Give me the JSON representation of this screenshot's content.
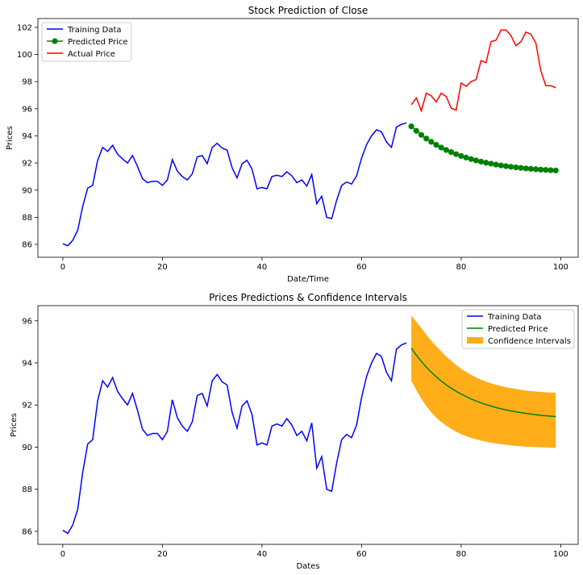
{
  "chart_data": [
    {
      "type": "line",
      "title": "Stock Prediction of Close",
      "xlabel": "Date/Time",
      "ylabel": "Prices",
      "xlim": [
        -5,
        103.5
      ],
      "ylim": [
        85.05,
        102.65
      ],
      "xticks": [
        0,
        20,
        40,
        60,
        80,
        100
      ],
      "yticks": [
        86,
        88,
        90,
        92,
        94,
        96,
        98,
        100,
        102
      ],
      "grid": false,
      "legend": "upper-left",
      "series": [
        {
          "name": "Training Data",
          "color": "#0000ff",
          "marker": "none",
          "x": [
            0,
            1,
            2,
            3,
            4,
            5,
            6,
            7,
            8,
            9,
            10,
            11,
            12,
            13,
            14,
            15,
            16,
            17,
            18,
            19,
            20,
            21,
            22,
            23,
            24,
            25,
            26,
            27,
            28,
            29,
            30,
            31,
            32,
            33,
            34,
            35,
            36,
            37,
            38,
            39,
            40,
            41,
            42,
            43,
            44,
            45,
            46,
            47,
            48,
            49,
            50,
            51,
            52,
            53,
            54,
            55,
            56,
            57,
            58,
            59,
            60,
            61,
            62,
            63,
            64,
            65,
            66,
            67,
            68,
            69
          ],
          "y": [
            86.05,
            85.9,
            86.3,
            87.05,
            88.8,
            90.15,
            90.35,
            92.2,
            93.15,
            92.85,
            93.3,
            92.65,
            92.3,
            92.0,
            92.55,
            91.75,
            90.85,
            90.55,
            90.65,
            90.65,
            90.35,
            90.75,
            92.25,
            91.4,
            91.0,
            90.75,
            91.2,
            92.45,
            92.55,
            91.95,
            93.15,
            93.45,
            93.1,
            92.95,
            91.65,
            90.9,
            91.95,
            92.2,
            91.55,
            90.1,
            90.2,
            90.1,
            91.0,
            91.1,
            91.0,
            91.35,
            91.05,
            90.55,
            90.75,
            90.3,
            91.15,
            89.0,
            89.55,
            88.0,
            87.9,
            89.25,
            90.35,
            90.6,
            90.45,
            91.05,
            92.35,
            93.35,
            94.0,
            94.45,
            94.3,
            93.55,
            93.15,
            94.65,
            94.85,
            94.95
          ]
        },
        {
          "name": "Predicted Price",
          "color": "#008000",
          "marker": "circle",
          "x": [
            70,
            71,
            72,
            73,
            74,
            75,
            76,
            77,
            78,
            79,
            80,
            81,
            82,
            83,
            84,
            85,
            86,
            87,
            88,
            89,
            90,
            91,
            92,
            93,
            94,
            95,
            96,
            97,
            98,
            99
          ],
          "y": [
            94.7,
            94.37,
            94.07,
            93.8,
            93.56,
            93.34,
            93.14,
            92.96,
            92.8,
            92.65,
            92.52,
            92.4,
            92.29,
            92.19,
            92.1,
            92.02,
            91.95,
            91.88,
            91.82,
            91.77,
            91.72,
            91.68,
            91.64,
            91.6,
            91.57,
            91.54,
            91.51,
            91.49,
            91.47,
            91.45
          ]
        },
        {
          "name": "Actual Price",
          "color": "#ff0000",
          "marker": "none",
          "x": [
            70,
            71,
            72,
            73,
            74,
            75,
            76,
            77,
            78,
            79,
            80,
            81,
            82,
            83,
            84,
            85,
            86,
            87,
            88,
            89,
            90,
            91,
            92,
            93,
            94,
            95,
            96,
            97,
            98,
            99
          ],
          "y": [
            96.3,
            96.8,
            95.85,
            97.15,
            96.95,
            96.5,
            97.15,
            96.9,
            96.05,
            95.9,
            97.9,
            97.65,
            98.0,
            98.15,
            99.55,
            99.4,
            100.95,
            101.05,
            101.8,
            101.8,
            101.4,
            100.65,
            100.95,
            101.65,
            101.5,
            100.85,
            98.8,
            97.7,
            97.7,
            97.55
          ]
        }
      ]
    },
    {
      "type": "line",
      "title": "Prices Predictions & Confidence Intervals",
      "xlabel": "Dates",
      "ylabel": "Prices",
      "xlim": [
        -5,
        103.5
      ],
      "ylim": [
        85.38,
        96.72
      ],
      "xticks": [
        0,
        20,
        40,
        60,
        80,
        100
      ],
      "yticks": [
        86,
        88,
        90,
        92,
        94,
        96
      ],
      "grid": false,
      "legend": "upper-right",
      "series": [
        {
          "name": "Training Data",
          "color": "#0000ff",
          "reuse": "training"
        },
        {
          "name": "Predicted Price",
          "color": "#008000",
          "marker": "none",
          "reuse": "predicted"
        },
        {
          "name": "Confidence Intervals",
          "color": "#ffa500",
          "type": "band",
          "x": [
            70,
            71,
            72,
            73,
            74,
            75,
            76,
            77,
            78,
            79,
            80,
            81,
            82,
            83,
            84,
            85,
            86,
            87,
            88,
            89,
            90,
            91,
            92,
            93,
            94,
            95,
            96,
            97,
            98,
            99
          ],
          "lower": [
            93.15,
            92.7,
            92.3,
            91.95,
            91.65,
            91.4,
            91.2,
            91.02,
            90.87,
            90.73,
            90.62,
            90.52,
            90.44,
            90.37,
            90.31,
            90.26,
            90.21,
            90.17,
            90.14,
            90.11,
            90.08,
            90.06,
            90.04,
            90.02,
            90.01,
            90.0,
            89.99,
            89.98,
            89.97,
            89.96
          ],
          "upper": [
            96.25,
            95.95,
            95.65,
            95.35,
            95.05,
            94.8,
            94.55,
            94.3,
            94.1,
            93.9,
            93.72,
            93.57,
            93.43,
            93.31,
            93.2,
            93.11,
            93.03,
            92.96,
            92.9,
            92.85,
            92.8,
            92.76,
            92.72,
            92.69,
            92.66,
            92.64,
            92.62,
            92.6,
            92.59,
            92.58
          ]
        }
      ]
    }
  ]
}
